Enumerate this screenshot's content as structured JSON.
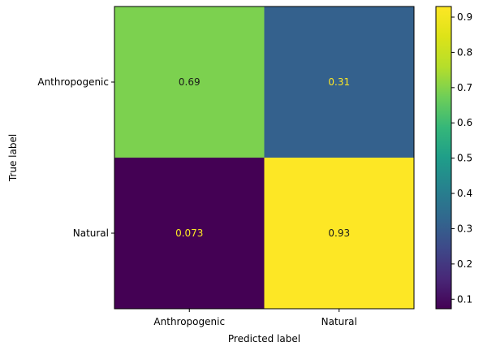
{
  "chart_data": {
    "type": "heatmap",
    "title": "",
    "xlabel": "Predicted label",
    "ylabel": "True label",
    "x_categories": [
      "Anthropogenic",
      "Natural"
    ],
    "y_categories": [
      "Anthropogenic",
      "Natural"
    ],
    "values": [
      [
        0.69,
        0.31
      ],
      [
        0.073,
        0.93
      ]
    ],
    "value_labels": [
      [
        "0.69",
        "0.31"
      ],
      [
        "0.073",
        "0.93"
      ]
    ],
    "colormap": "viridis",
    "colorbar": {
      "range": [
        0.073,
        0.93
      ],
      "ticks": [
        0.1,
        0.2,
        0.3,
        0.4,
        0.5,
        0.6,
        0.7,
        0.8,
        0.9
      ],
      "tick_labels": [
        "0.1",
        "0.2",
        "0.3",
        "0.4",
        "0.5",
        "0.6",
        "0.7",
        "0.8",
        "0.9"
      ]
    },
    "text_colors": {
      "light": "#FDE725",
      "dark": "#1a1a1a"
    },
    "grid": false,
    "legend": "colorbar right"
  }
}
